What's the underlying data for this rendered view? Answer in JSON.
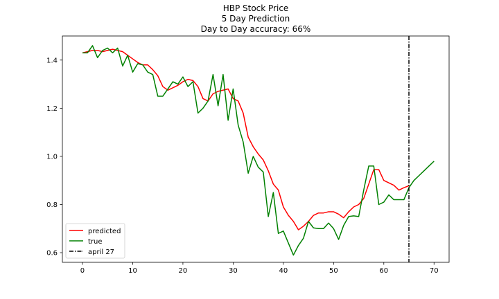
{
  "chart_data": {
    "type": "line",
    "title": "HBP Stock Price",
    "subtitle": "5 Day Prediction",
    "accuracy_text": "Day to Day accuracy: 66%",
    "xlabel": "",
    "ylabel": "",
    "xlim": [
      -4,
      73
    ],
    "ylim": [
      0.56,
      1.5
    ],
    "xticks": [
      0,
      10,
      20,
      30,
      40,
      50,
      60,
      70
    ],
    "yticks": [
      0.6,
      0.8,
      1.0,
      1.2,
      1.4
    ],
    "ytick_labels": [
      "0.6",
      "0.8",
      "1.0",
      "1.2",
      "1.4"
    ],
    "grid": false,
    "legend_position": "lower-left",
    "series": [
      {
        "name": "predicted",
        "color": "#ff0000",
        "x": [
          0,
          1,
          2,
          3,
          4,
          5,
          6,
          7,
          8,
          9,
          10,
          11,
          12,
          13,
          14,
          15,
          16,
          17,
          18,
          19,
          20,
          21,
          22,
          23,
          24,
          25,
          26,
          27,
          28,
          29,
          30,
          31,
          32,
          33,
          34,
          35,
          36,
          37,
          38,
          39,
          40,
          41,
          42,
          43,
          44,
          45,
          46,
          47,
          48,
          49,
          50,
          51,
          52,
          53,
          54,
          55,
          56,
          57,
          58,
          59,
          60,
          61,
          62,
          63,
          64,
          65
        ],
        "values": [
          1.43,
          1.435,
          1.44,
          1.44,
          1.435,
          1.44,
          1.445,
          1.44,
          1.435,
          1.42,
          1.405,
          1.39,
          1.38,
          1.38,
          1.36,
          1.335,
          1.29,
          1.275,
          1.285,
          1.295,
          1.31,
          1.32,
          1.315,
          1.29,
          1.24,
          1.23,
          1.26,
          1.27,
          1.275,
          1.28,
          1.24,
          1.23,
          1.18,
          1.08,
          1.04,
          1.01,
          0.985,
          0.94,
          0.885,
          0.86,
          0.79,
          0.755,
          0.73,
          0.695,
          0.71,
          0.73,
          0.755,
          0.765,
          0.765,
          0.77,
          0.77,
          0.76,
          0.745,
          0.77,
          0.79,
          0.8,
          0.825,
          0.885,
          0.945,
          0.945,
          0.9,
          0.89,
          0.88,
          0.86,
          0.87,
          0.878
        ]
      },
      {
        "name": "true",
        "color": "#008000",
        "x": [
          0,
          1,
          2,
          3,
          4,
          5,
          6,
          7,
          8,
          9,
          10,
          11,
          12,
          13,
          14,
          15,
          16,
          17,
          18,
          19,
          20,
          21,
          22,
          23,
          24,
          25,
          26,
          27,
          28,
          29,
          30,
          31,
          32,
          33,
          34,
          35,
          36,
          37,
          38,
          39,
          40,
          41,
          42,
          43,
          44,
          45,
          46,
          47,
          48,
          49,
          50,
          51,
          52,
          53,
          54,
          55,
          56,
          57,
          58,
          59,
          60,
          61,
          62,
          63,
          64,
          65,
          66,
          67,
          68,
          69,
          70
        ],
        "values": [
          1.43,
          1.43,
          1.46,
          1.41,
          1.44,
          1.45,
          1.43,
          1.45,
          1.375,
          1.42,
          1.35,
          1.385,
          1.38,
          1.35,
          1.34,
          1.25,
          1.25,
          1.28,
          1.31,
          1.3,
          1.33,
          1.29,
          1.31,
          1.18,
          1.2,
          1.23,
          1.34,
          1.21,
          1.34,
          1.15,
          1.28,
          1.13,
          1.06,
          0.93,
          1.0,
          0.955,
          0.935,
          0.75,
          0.85,
          0.68,
          0.69,
          0.64,
          0.59,
          0.63,
          0.66,
          0.73,
          0.703,
          0.7,
          0.7,
          0.723,
          0.7,
          0.655,
          0.713,
          0.75,
          0.753,
          0.75,
          0.86,
          0.96,
          0.96,
          0.8,
          0.81,
          0.84,
          0.82,
          0.82,
          0.82,
          0.87,
          0.9,
          0.92,
          0.94,
          0.96,
          0.98
        ]
      }
    ],
    "vline": {
      "x": 65,
      "name": "april 27",
      "color": "#000000",
      "style": "dashdot"
    }
  }
}
